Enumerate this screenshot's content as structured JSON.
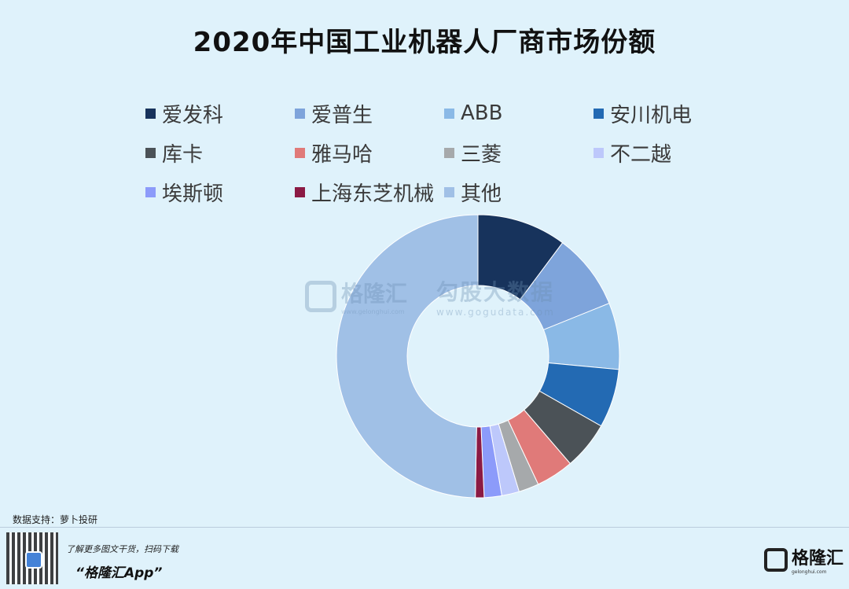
{
  "chart_data": {
    "type": "pie",
    "title": "2020年中国工业机器人厂商市场份额",
    "donut": true,
    "legend_position": "top",
    "categories": [
      "爱发科",
      "爱普生",
      "ABB",
      "安川机电",
      "库卡",
      "雅马哈",
      "三菱",
      "不二越",
      "埃斯顿",
      "上海东芝机械",
      "其他"
    ],
    "values": [
      10.2,
      8.7,
      7.6,
      6.7,
      5.5,
      4.3,
      2.3,
      2.0,
      2.0,
      1.0,
      49.7
    ],
    "colors": [
      "#17335c",
      "#7ea4db",
      "#8ab9e6",
      "#236ab3",
      "#4b5257",
      "#e07a79",
      "#a6a9ab",
      "#bdc8fb",
      "#8c9bfa",
      "#8b1a44",
      "#a0c0e6"
    ]
  },
  "watermark": {
    "brand": "格隆汇",
    "brand_url": "www.gelonghui.com",
    "data_brand": "勾股大数据",
    "data_url": "www.gogudata.com"
  },
  "footer": {
    "source": "数据支持：萝卜投研",
    "slogan": "了解更多图文干货，扫码下载",
    "app": "“格隆汇App”",
    "logo_text": "格隆汇",
    "logo_sub": "gelonghui.com"
  }
}
